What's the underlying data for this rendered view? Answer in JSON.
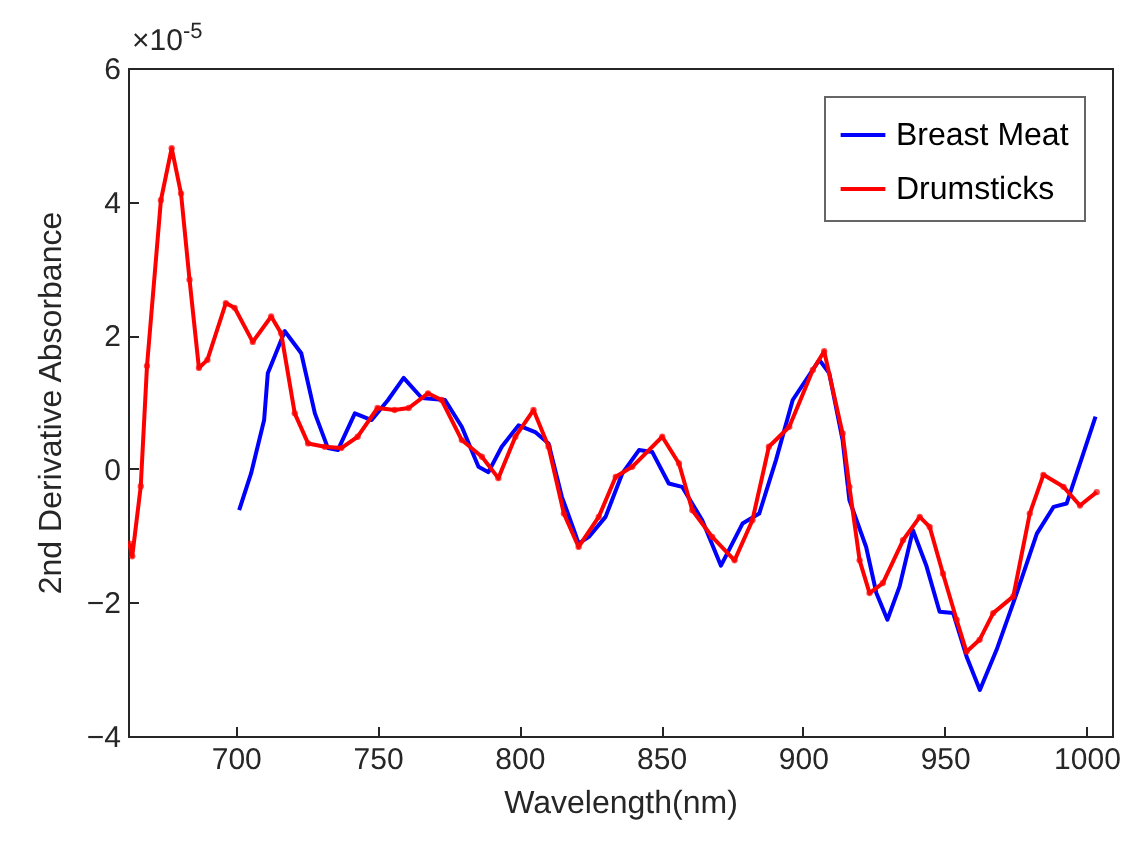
{
  "chart_data": {
    "type": "line",
    "xlabel": "Wavelength(nm)",
    "ylabel": "2nd Derivative Absorbance",
    "annotations": [
      "×10$^{-5}$"
    ],
    "xlim": [
      662,
      1009
    ],
    "xticks": [
      700,
      750,
      800,
      850,
      900,
      950,
      1000
    ],
    "ylim": [
      -4,
      6
    ],
    "yticks": [
      -4,
      -2,
      0,
      2,
      4,
      6
    ],
    "grid": false,
    "legend": "top right",
    "line_style": "solid",
    "series": [
      {
        "name": "Breast Meat",
        "color": "#0000ff",
        "marker": "none",
        "x": [
          701.2,
          705.4,
          710,
          711.3,
          717.3,
          723.1,
          727.9,
          732.5,
          736,
          742,
          747.9,
          753.7,
          759.2,
          765.6,
          773.8,
          779.7,
          785.6,
          789.1,
          793.8,
          799.7,
          805.6,
          810.3,
          815,
          819.7,
          820.9,
          824.5,
          830.4,
          836.3,
          842.2,
          846.9,
          852.7,
          857.4,
          864.5,
          871.1,
          878.7,
          884.6,
          890.5,
          896.4,
          905.8,
          909.3,
          914,
          916.4,
          922.3,
          925.9,
          929.8,
          934.1,
          938.8,
          943.6,
          948.2,
          953,
          957.7,
          962.4,
          968.3,
          975.4,
          982.5,
          988.4,
          993,
          998.9,
          1003.2
        ],
        "values": [
          -0.62,
          -0.07,
          0.73,
          1.43,
          2.06,
          1.73,
          0.83,
          0.31,
          0.28,
          0.83,
          0.73,
          1.03,
          1.36,
          1.06,
          1.03,
          0.63,
          0.03,
          -0.05,
          0.33,
          0.65,
          0.55,
          0.38,
          -0.42,
          -0.97,
          -1.12,
          -1.02,
          -0.72,
          -0.07,
          0.28,
          0.25,
          -0.22,
          -0.27,
          -0.77,
          -1.45,
          -0.82,
          -0.67,
          0.13,
          1.03,
          1.63,
          1.43,
          0.43,
          -0.47,
          -1.17,
          -1.86,
          -2.26,
          -1.76,
          -0.92,
          -1.46,
          -2.14,
          -2.16,
          -2.81,
          -3.31,
          -2.71,
          -1.86,
          -0.97,
          -0.57,
          -0.52,
          0.23,
          0.78
        ]
      },
      {
        "name": "Drumsticks",
        "color": "#ff0000",
        "marker": "circle",
        "x": [
          662.5,
          663.5,
          666.5,
          668.7,
          673.6,
          677.4,
          680.7,
          683.7,
          687,
          690,
          696.5,
          699.6,
          706,
          712.5,
          716,
          720.8,
          725.5,
          731.4,
          737.2,
          743,
          750,
          756,
          761,
          767.8,
          772.6,
          779.7,
          786.8,
          792.6,
          798.6,
          805,
          810.3,
          815.7,
          820.9,
          828,
          834,
          839.8,
          850.4,
          856.3,
          861,
          868,
          875.9,
          882.2,
          888,
          895.2,
          903.5,
          907.5,
          914,
          916.4,
          920,
          923.5,
          928.2,
          935.3,
          941.2,
          944.7,
          949.4,
          954.2,
          957.7,
          962.3,
          967.1,
          974.2,
          980,
          984.8,
          991.9,
          997.7,
          1003.6
        ],
        "values": [
          -1.12,
          -1.31,
          -0.26,
          1.54,
          4.02,
          4.8,
          4.12,
          2.83,
          1.51,
          1.63,
          2.48,
          2.41,
          1.9,
          2.28,
          2.03,
          0.83,
          0.38,
          0.33,
          0.31,
          0.48,
          0.91,
          0.88,
          0.91,
          1.13,
          1.03,
          0.43,
          0.18,
          -0.14,
          0.48,
          0.88,
          0.33,
          -0.67,
          -1.17,
          -0.72,
          -0.12,
          0.03,
          0.48,
          0.08,
          -0.62,
          -1.02,
          -1.37,
          -0.77,
          0.33,
          0.63,
          1.48,
          1.76,
          0.53,
          -0.27,
          -1.37,
          -1.86,
          -1.71,
          -1.07,
          -0.72,
          -0.87,
          -1.57,
          -2.26,
          -2.74,
          -2.56,
          -2.16,
          -1.91,
          -0.67,
          -0.09,
          -0.27,
          -0.55,
          -0.35
        ]
      }
    ]
  }
}
